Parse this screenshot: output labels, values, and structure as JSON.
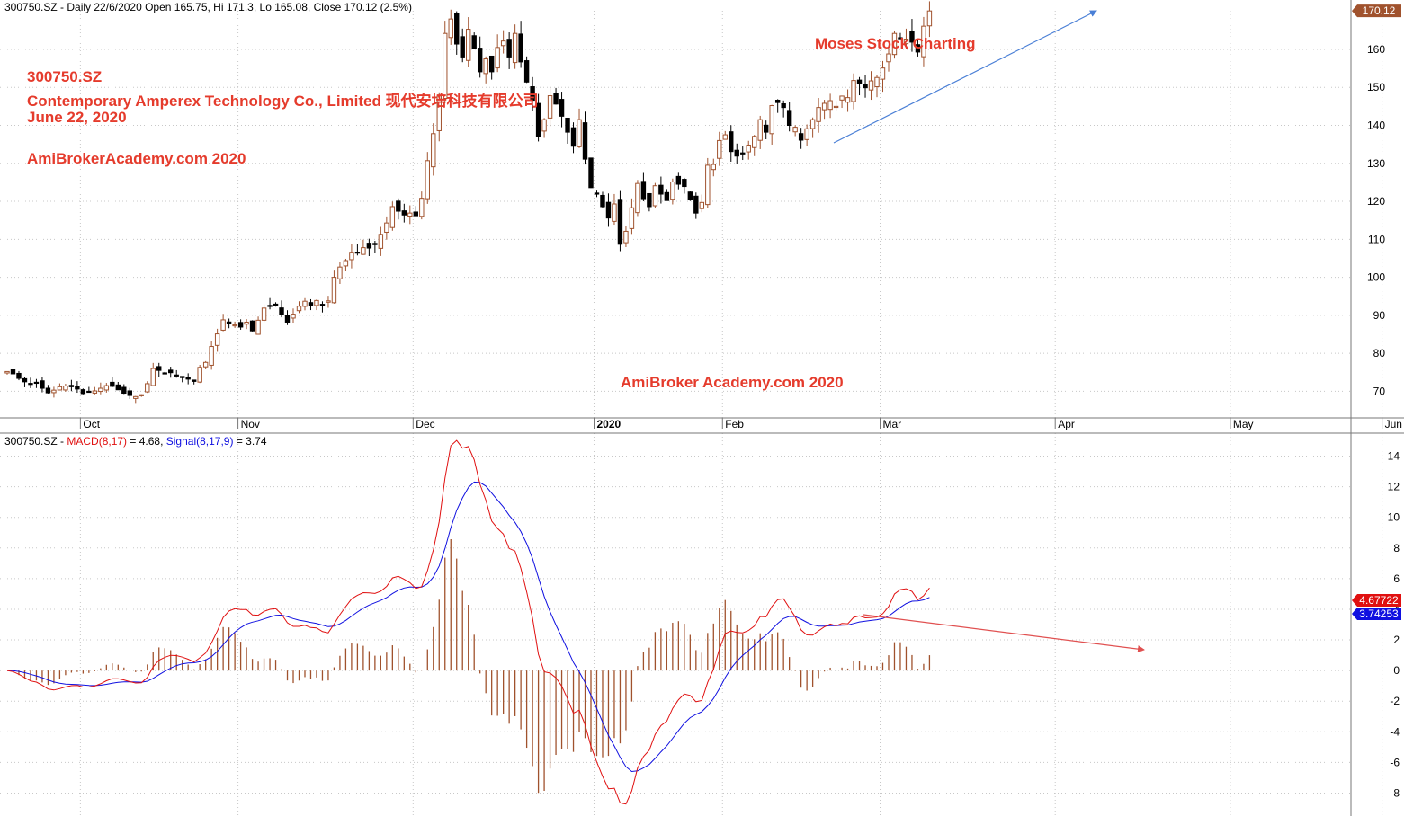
{
  "price_header": {
    "symbol": "300750.SZ",
    "interval": "Daily",
    "date": "22/6/2020",
    "open": "165.75",
    "high": "171.3",
    "low": "165.08",
    "close": "170.12",
    "change": "2.5%",
    "text": "300750.SZ - Daily 22/6/2020 Open 165.75, Hi 171.3, Lo 165.08, Close 170.12 (2.5%)"
  },
  "macd_header": {
    "symbol_prefix": "300750.SZ - ",
    "macd_label": "MACD(8,17)",
    "macd_value": " = 4.68, ",
    "signal_label": "Signal(8,17,9)",
    "signal_value": " = 3.74"
  },
  "annotations": {
    "ticker": "300750.SZ",
    "company": "Contemporary Amperex Technology Co., Limited 现代安培科技有限公司",
    "date": "June 22, 2020",
    "site": "AmiBroker Academy.com  2020",
    "site_left": "AmiBrokerAcademy.com  2020",
    "brand": "Moses Stock Charting"
  },
  "colors": {
    "up_candle": "#a0522d",
    "down_candle": "#000000",
    "macd_line": "#e01010",
    "signal_line": "#1010e0",
    "histogram": "#a0522d",
    "annotation_red": "#e53b2c",
    "trend_up_arrow": "#4a7fd6",
    "trend_down_arrow": "#e05050",
    "last_price_tag": "#a0522d"
  },
  "chart_data": [
    {
      "type": "candlestick",
      "title": "300750.SZ - Daily 22/6/2020 Open 165.75, Hi 171.3, Lo 165.08, Close 170.12 (2.5%)",
      "x_labels": [
        "Oct",
        "Nov",
        "Dec",
        "2020",
        "Feb",
        "Mar",
        "Apr",
        "May",
        "Jun"
      ],
      "x_label_indices": [
        13,
        40,
        70,
        101,
        123,
        150,
        180,
        210,
        236
      ],
      "ylim": [
        63,
        173
      ],
      "yticks": [
        70,
        80,
        90,
        100,
        110,
        120,
        130,
        140,
        150,
        160
      ],
      "last_price_tag": "170.12",
      "closes": [
        75.2,
        74.6,
        73.4,
        72.5,
        71.8,
        72.3,
        70.8,
        69.6,
        70.3,
        71.2,
        71.4,
        71.2,
        70.6,
        69.4,
        69.8,
        70.1,
        70.8,
        71.5,
        71.3,
        70.4,
        69.5,
        68.9,
        68.6,
        69.1,
        72.0,
        76.0,
        75.5,
        74.8,
        74.9,
        74.2,
        73.6,
        73.2,
        72.6,
        76.3,
        77.6,
        81.8,
        85.1,
        88.8,
        87.9,
        87.5,
        86.9,
        88.2,
        85.9,
        88.7,
        91.9,
        92.4,
        92.9,
        90.2,
        88.2,
        90.3,
        92.4,
        93.7,
        92.6,
        93.9,
        92.5,
        93.8,
        100.0,
        102.7,
        104.4,
        106.6,
        106.6,
        107.8,
        107.7,
        108.6,
        111.3,
        114.3,
        118.6,
        117.4,
        116.4,
        116.9,
        116.2,
        120.8,
        130.7,
        137.8,
        147.7,
        164.2,
        168.0,
        161.4,
        158.0,
        165.3,
        160.2,
        154.1,
        157.5,
        154.1,
        160.5,
        162.2,
        158.0,
        164.2,
        156.7,
        151.4,
        146.6,
        137.0,
        141.5,
        147.8,
        145.6,
        142.4,
        138.2,
        134.5,
        141.5,
        131.1,
        123.6,
        122.0,
        118.6,
        115.6,
        119.3,
        108.7,
        112.1,
        118.3,
        124.7,
        120.7,
        118.6,
        124.1,
        121.9,
        120.2,
        125.1,
        124.5,
        123.9,
        120.4,
        116.9,
        119.7,
        129.5,
        129.7,
        136.0,
        137.5,
        133.1,
        131.9,
        132.7,
        134.8,
        137.1,
        141.5,
        138.2,
        145.2,
        146.0,
        144.7,
        140.0,
        139.5,
        136.1,
        139.1,
        141.5,
        144.7,
        145.8,
        146.5,
        145.0,
        147.7,
        147.3,
        151.8,
        150.9,
        149.9,
        151.7,
        152.6,
        155.1,
        158.8,
        164.2,
        162.8,
        162.7,
        161.9,
        159.3,
        166.1,
        170.12
      ],
      "series": [
        {
          "name": "MACD(8,17)",
          "last": "4.68"
        },
        {
          "name": "Signal(8,17,9)",
          "last": "3.74"
        }
      ]
    },
    {
      "type": "line",
      "title": "300750.SZ - MACD(8,17) = 4.68, Signal(8,17,9) = 3.74",
      "ylim": [
        -9.5,
        15.5
      ],
      "yticks": [
        -8,
        -6,
        -4,
        -2,
        0,
        2,
        4,
        6,
        8,
        10,
        12,
        14
      ],
      "tags": {
        "macd": "4.67722",
        "signal": "3.74253"
      },
      "series": [
        {
          "name": "MACD(8,17)",
          "color": "#e01010"
        },
        {
          "name": "Signal(8,17,9)",
          "color": "#1010e0"
        },
        {
          "name": "Histogram",
          "color": "#a0522d"
        }
      ]
    }
  ]
}
